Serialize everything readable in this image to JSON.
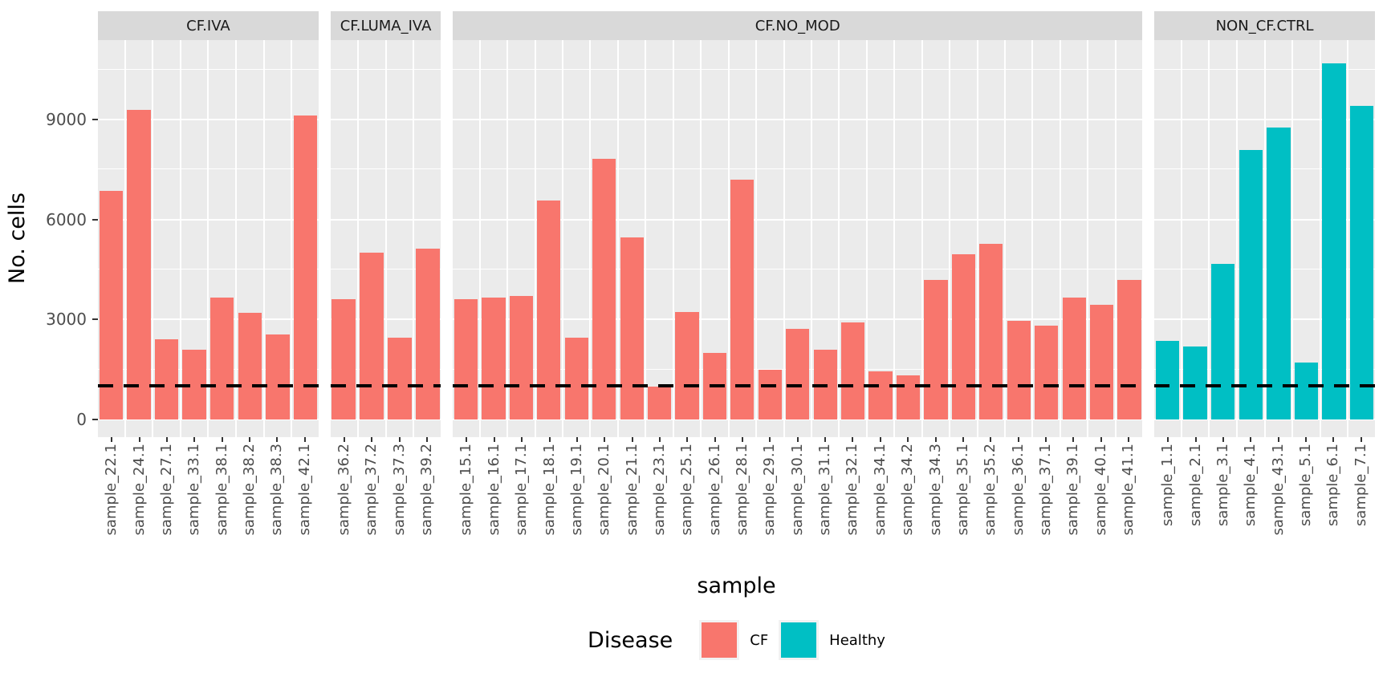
{
  "axis": {
    "y_title": "No. cells",
    "x_title": "sample",
    "y_tick_labels": [
      "0",
      "3000",
      "6000",
      "9000"
    ]
  },
  "legend": {
    "title": "Disease",
    "items": [
      {
        "label": "CF",
        "color": "#F8766D"
      },
      {
        "label": "Healthy",
        "color": "#00BFC4"
      }
    ]
  },
  "colors": {
    "CF": "#F8766D",
    "Healthy": "#00BFC4",
    "panel_background": "#EBEBEB",
    "strip_background": "#D9D9D9",
    "gridline": "#FFFFFF",
    "tick_text": "#4D4D4D",
    "threshold_line": "#000000"
  },
  "chart_data": {
    "type": "bar",
    "title": "",
    "xlabel": "sample",
    "ylabel": "No. cells",
    "ylim": [
      0,
      11400
    ],
    "y_ticks": [
      0,
      3000,
      6000,
      9000
    ],
    "y_minor_gridlines": [
      1500,
      4500,
      7500,
      10500
    ],
    "grid": true,
    "legend_position": "bottom",
    "threshold_line": {
      "value": 1000,
      "style": "dashed",
      "color": "#000000"
    },
    "facets": [
      {
        "label": "CF.IVA",
        "group": "CF",
        "samples": [
          "sample_22.1",
          "sample_24.1",
          "sample_27.1",
          "sample_33.1",
          "sample_38.1",
          "sample_38.2",
          "sample_38.3",
          "sample_42.1"
        ],
        "values": [
          6850,
          9300,
          2400,
          2100,
          3670,
          3200,
          2560,
          9130
        ]
      },
      {
        "label": "CF.LUMA_IVA",
        "group": "CF",
        "samples": [
          "sample_36.2",
          "sample_37.2",
          "sample_37.3",
          "sample_39.2"
        ],
        "values": [
          3620,
          5000,
          2450,
          5130
        ]
      },
      {
        "label": "CF.NO_MOD",
        "group": "CF",
        "samples": [
          "sample_15.1",
          "sample_16.1",
          "sample_17.1",
          "sample_18.1",
          "sample_19.1",
          "sample_20.1",
          "sample_21.1",
          "sample_23.1",
          "sample_25.1",
          "sample_26.1",
          "sample_28.1",
          "sample_29.1",
          "sample_30.1",
          "sample_31.1",
          "sample_32.1",
          "sample_34.1",
          "sample_34.2",
          "sample_34.3",
          "sample_35.1",
          "sample_35.2",
          "sample_36.1",
          "sample_37.1",
          "sample_39.1",
          "sample_40.1",
          "sample_41.1"
        ],
        "values": [
          3600,
          3670,
          3700,
          6580,
          2460,
          7830,
          5460,
          1000,
          3230,
          2000,
          7190,
          1500,
          2720,
          2100,
          2920,
          1440,
          1320,
          4180,
          4960,
          5270,
          2950,
          2820,
          3670,
          3450,
          4200
        ]
      },
      {
        "label": "NON_CF.CTRL",
        "group": "Healthy",
        "samples": [
          "sample_1.1",
          "sample_2.1",
          "sample_3.1",
          "sample_4.1",
          "sample_43.1",
          "sample_5.1",
          "sample_6.1",
          "sample_7.1"
        ],
        "values": [
          2350,
          2200,
          4670,
          8100,
          8760,
          1700,
          10700,
          9420
        ]
      }
    ]
  }
}
